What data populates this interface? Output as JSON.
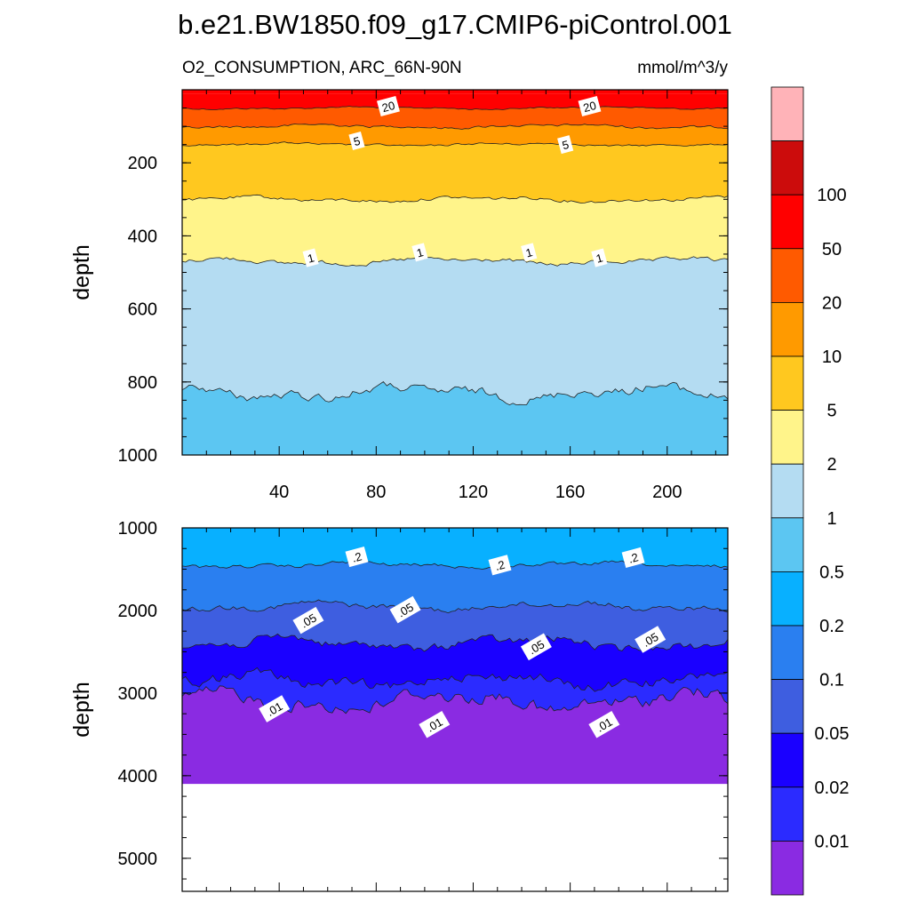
{
  "chart_data": {
    "type": "contour",
    "title": "b.e21.BW1850.f09_g17.CMIP6-piControl.001",
    "left_label": "O2_CONSUMPTION, ARC_66N-90N",
    "right_label": "mmol/m^3/y",
    "colorbar": {
      "colors": [
        "#8a2be2",
        "#2b2bff",
        "#1a00ff",
        "#3e5ee0",
        "#2a7ff0",
        "#08b0ff",
        "#5cc6f2",
        "#b4dcf2",
        "#fff48a",
        "#ffc81f",
        "#ff9a00",
        "#ff5a00",
        "#ff0000",
        "#cc0c0c",
        "#ffb3b8"
      ],
      "levels": [
        "0.01",
        "0.02",
        "0.05",
        "0.1",
        "0.2",
        "0.5",
        "1",
        "2",
        "5",
        "10",
        "20",
        "50",
        "100"
      ]
    },
    "panels": [
      {
        "name": "upper",
        "ylabel": "depth",
        "ylim": [
          0,
          1000
        ],
        "xlim": [
          0,
          225
        ],
        "yticks": [
          "200",
          "400",
          "600",
          "800",
          "1000"
        ],
        "xticks": [
          "40",
          "80",
          "120",
          "160",
          "200"
        ],
        "bands": [
          {
            "from_depth": 10,
            "to_depth": 50,
            "level": "50"
          },
          {
            "from_depth": 50,
            "to_depth": 100,
            "level": "20"
          },
          {
            "from_depth": 100,
            "to_depth": 150,
            "level": "10"
          },
          {
            "from_depth": 150,
            "to_depth": 300,
            "level": "5"
          },
          {
            "from_depth": 300,
            "to_depth": 470,
            "level": "2"
          },
          {
            "from_depth": 470,
            "to_depth": 830,
            "level": "1"
          },
          {
            "from_depth": 830,
            "to_depth": 1000,
            "level": "0.5"
          }
        ],
        "contour_labels": [
          {
            "text": "20",
            "x": 85,
            "y": 45
          },
          {
            "text": "20",
            "x": 168,
            "y": 45
          },
          {
            "text": "5",
            "x": 72,
            "y": 140
          },
          {
            "text": "5",
            "x": 158,
            "y": 150
          },
          {
            "text": "1",
            "x": 53,
            "y": 460
          },
          {
            "text": "1",
            "x": 98,
            "y": 445
          },
          {
            "text": "1",
            "x": 143,
            "y": 445
          },
          {
            "text": "1",
            "x": 172,
            "y": 460
          }
        ]
      },
      {
        "name": "lower",
        "ylabel": "depth",
        "ylim": [
          1000,
          5400
        ],
        "xlim": [
          0,
          225
        ],
        "yticks": [
          "1000",
          "2000",
          "3000",
          "4000",
          "5000"
        ],
        "data_bottom_depth": 4100,
        "bands": [
          {
            "from_depth": 1000,
            "to_depth": 1450,
            "level": "0.2"
          },
          {
            "from_depth": 1450,
            "to_depth": 1950,
            "level": "0.1"
          },
          {
            "from_depth": 1950,
            "to_depth": 2400,
            "level": "0.05"
          },
          {
            "from_depth": 2400,
            "to_depth": 2850,
            "level": "0.02"
          },
          {
            "from_depth": 2850,
            "to_depth": 3100,
            "level": "0.01"
          },
          {
            "from_depth": 3100,
            "to_depth": 4100,
            "level": "<0.01"
          }
        ],
        "contour_labels": [
          {
            "text": ".2",
            "x": 72,
            "y": 1350
          },
          {
            "text": ".2",
            "x": 131,
            "y": 1450
          },
          {
            "text": ".2",
            "x": 186,
            "y": 1360
          },
          {
            "text": ".05",
            "x": 52,
            "y": 2120
          },
          {
            "text": ".05",
            "x": 92,
            "y": 1990
          },
          {
            "text": ".05",
            "x": 146,
            "y": 2440
          },
          {
            "text": ".05",
            "x": 193,
            "y": 2350
          },
          {
            "text": ".01",
            "x": 38,
            "y": 3190
          },
          {
            "text": ".01",
            "x": 104,
            "y": 3380
          },
          {
            "text": ".01",
            "x": 174,
            "y": 3380
          }
        ]
      }
    ]
  }
}
